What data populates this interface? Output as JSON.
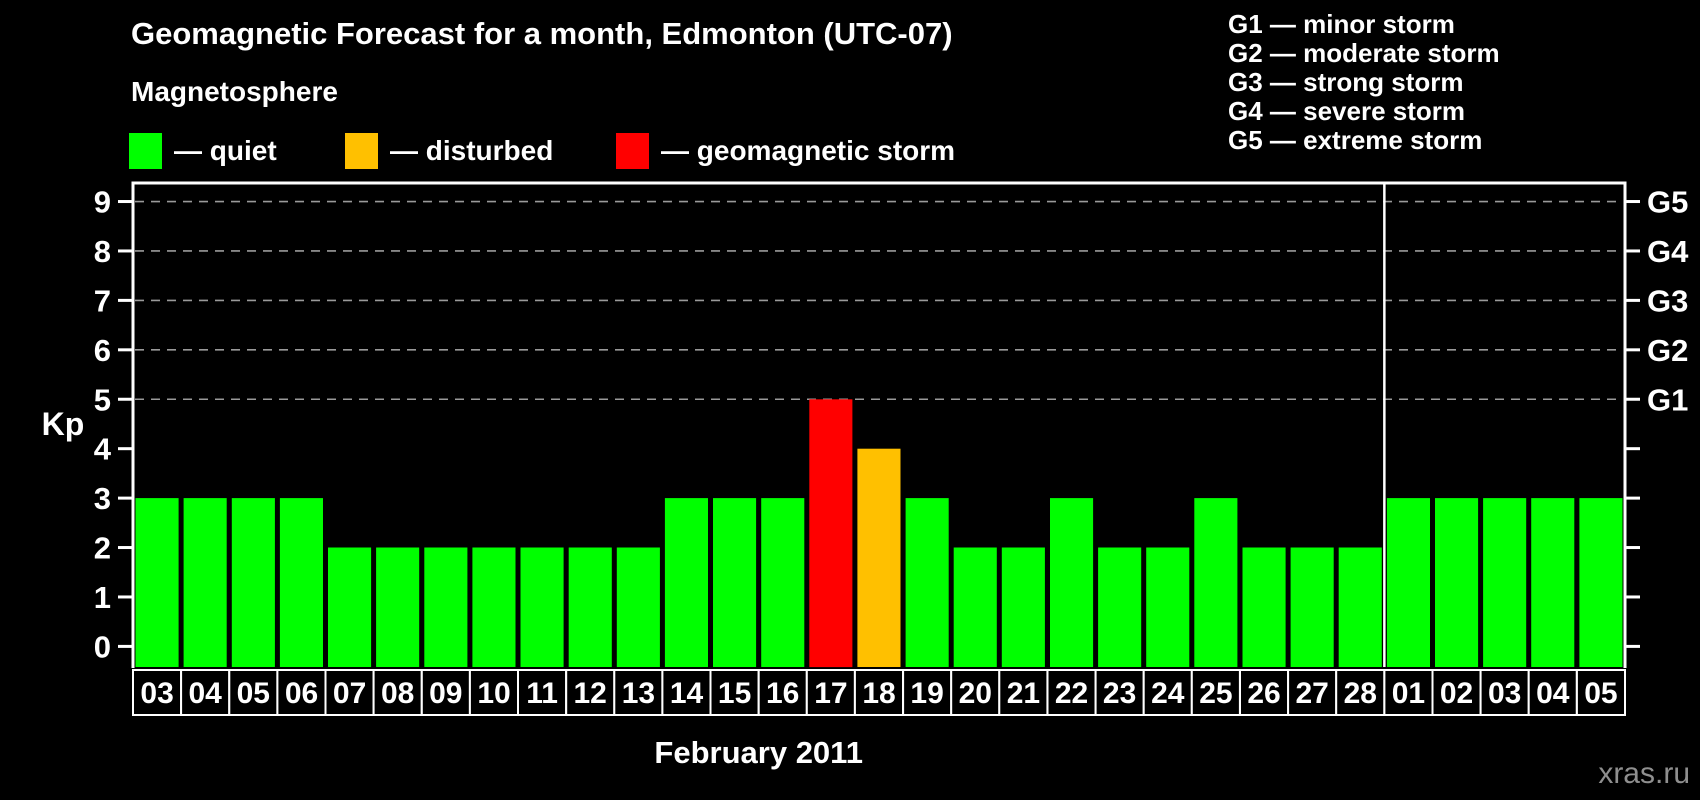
{
  "title": "Geomagnetic Forecast for a month, Edmonton (UTC-07)",
  "subtitle": "Magnetosphere",
  "magnetosphere_legend": [
    {
      "status": "quiet",
      "label": "— quiet",
      "color": "#00ff00"
    },
    {
      "status": "disturbed",
      "label": "— disturbed",
      "color": "#ffc000"
    },
    {
      "status": "storm",
      "label": "— geomagnetic storm",
      "color": "#ff0000"
    }
  ],
  "storm_scale_legend": [
    "G1 — minor storm",
    "G2 — moderate storm",
    "G3 — strong storm",
    "G4 — severe storm",
    "G5 — extreme storm"
  ],
  "chart_data": {
    "type": "bar",
    "title": "Geomagnetic Forecast for a month, Edmonton (UTC-07)",
    "xlabel": "February 2011",
    "ylabel": "Kp",
    "ylim": [
      0,
      9
    ],
    "yticks": [
      0,
      1,
      2,
      3,
      4,
      5,
      6,
      7,
      8,
      9
    ],
    "grid": "dashed horizontal lines at storm levels 5-9",
    "gridline_levels": [
      5,
      6,
      7,
      8,
      9
    ],
    "right_axis": {
      "levels": [
        5,
        6,
        7,
        8,
        9
      ],
      "labels": [
        "G1",
        "G2",
        "G3",
        "G4",
        "G5"
      ]
    },
    "categories": [
      "03",
      "04",
      "05",
      "06",
      "07",
      "08",
      "09",
      "10",
      "11",
      "12",
      "13",
      "14",
      "15",
      "16",
      "17",
      "18",
      "19",
      "20",
      "21",
      "22",
      "23",
      "24",
      "25",
      "26",
      "27",
      "28",
      "01",
      "02",
      "03",
      "04",
      "05"
    ],
    "values": [
      3,
      3,
      3,
      3,
      2,
      2,
      2,
      2,
      2,
      2,
      2,
      3,
      3,
      3,
      5,
      4,
      3,
      2,
      2,
      3,
      2,
      2,
      3,
      2,
      2,
      2,
      3,
      3,
      3,
      3,
      3
    ],
    "statuses": [
      "quiet",
      "quiet",
      "quiet",
      "quiet",
      "quiet",
      "quiet",
      "quiet",
      "quiet",
      "quiet",
      "quiet",
      "quiet",
      "quiet",
      "quiet",
      "quiet",
      "storm",
      "disturbed",
      "quiet",
      "quiet",
      "quiet",
      "quiet",
      "quiet",
      "quiet",
      "quiet",
      "quiet",
      "quiet",
      "quiet",
      "quiet",
      "quiet",
      "quiet",
      "quiet",
      "quiet"
    ],
    "status_colors": {
      "quiet": "#00ff00",
      "disturbed": "#ffc000",
      "storm": "#ff0000"
    },
    "month_separator_after_index": 25,
    "legend_position": "top-left",
    "watermark": "xras.ru"
  }
}
